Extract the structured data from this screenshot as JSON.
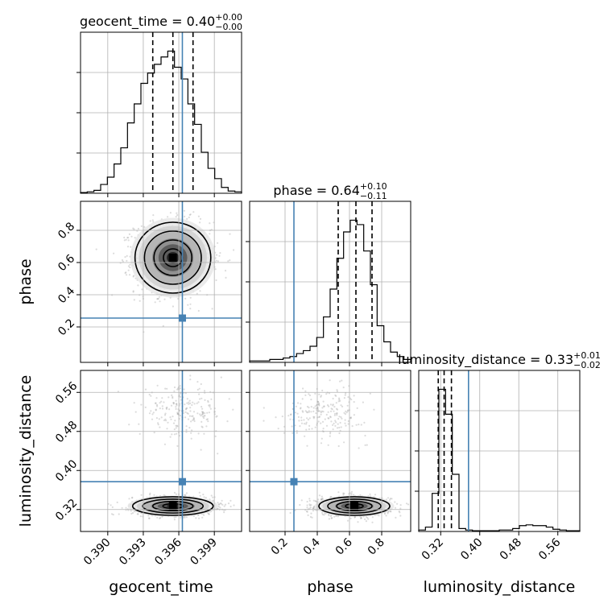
{
  "chart_data": {
    "type": "corner",
    "parameters": [
      "geocent_time",
      "phase",
      "luminosity_distance"
    ],
    "truths": {
      "geocent_time": 0.3963,
      "phase": 0.255,
      "luminosity_distance": 0.377
    },
    "titles": [
      {
        "param": "geocent_time",
        "text": "geocent_time = 0.40",
        "sup": "+0.00",
        "sub": "−0.00"
      },
      {
        "param": "phase",
        "text": "phase = 0.64",
        "sup": "+0.10",
        "sub": "−0.11"
      },
      {
        "param": "luminosity_distance",
        "text": "luminosity_distance = 0.33",
        "sup": "+0.01",
        "sub": "−0.02"
      }
    ],
    "axis_labels": {
      "geocent_time": "geocent_time",
      "phase": "phase",
      "luminosity_distance": "luminosity_distance"
    },
    "ranges": {
      "geocent_time": [
        0.3877,
        0.4013
      ],
      "phase": [
        -0.02,
        0.98
      ],
      "luminosity_distance": [
        0.275,
        0.605
      ]
    },
    "ticks": {
      "geocent_time": [
        "0.390",
        "0.393",
        "0.396",
        "0.399"
      ],
      "phase": [
        "0.2",
        "0.4",
        "0.6",
        "0.8"
      ],
      "luminosity_distance": [
        "0.32",
        "0.40",
        "0.48",
        "0.56"
      ]
    },
    "quantiles": {
      "geocent_time": [
        0.3938,
        0.3955,
        0.3972
      ],
      "phase": [
        0.53,
        0.64,
        0.74
      ],
      "luminosity_distance": [
        0.315,
        0.327,
        0.342
      ]
    },
    "histograms": {
      "geocent_time": {
        "range": [
          0.3877,
          0.4013
        ],
        "counts": [
          0.005,
          0.01,
          0.02,
          0.06,
          0.11,
          0.2,
          0.31,
          0.48,
          0.61,
          0.75,
          0.82,
          0.88,
          0.93,
          0.97,
          0.86,
          0.78,
          0.61,
          0.47,
          0.28,
          0.17,
          0.1,
          0.04,
          0.015,
          0.01
        ]
      },
      "phase": {
        "range": [
          -0.02,
          0.98
        ],
        "counts": [
          0.01,
          0.01,
          0.01,
          0.02,
          0.02,
          0.03,
          0.04,
          0.06,
          0.08,
          0.11,
          0.17,
          0.31,
          0.5,
          0.71,
          0.89,
          0.97,
          0.94,
          0.76,
          0.53,
          0.25,
          0.14,
          0.07,
          0.04,
          0.02
        ]
      },
      "luminosity_distance": {
        "range": [
          0.275,
          0.605
        ],
        "counts": [
          0.01,
          0.03,
          0.26,
          0.97,
          0.8,
          0.39,
          0.02,
          0.01,
          0.005,
          0.005,
          0.005,
          0.005,
          0.01,
          0.01,
          0.02,
          0.04,
          0.045,
          0.04,
          0.04,
          0.03,
          0.015,
          0.01,
          0.005,
          0.005
        ]
      }
    },
    "correlations": [
      {
        "x": "geocent_time",
        "y": "phase",
        "modes": [
          {
            "cx": 0.3955,
            "cy": 0.63,
            "sx": 0.0016,
            "sy": 0.11,
            "w": 1.0
          }
        ]
      },
      {
        "x": "geocent_time",
        "y": "luminosity_distance",
        "modes": [
          {
            "cx": 0.3955,
            "cy": 0.327,
            "sx": 0.0017,
            "sy": 0.0095,
            "w": 0.85
          },
          {
            "cx": 0.3963,
            "cy": 0.52,
            "sx": 0.0018,
            "sy": 0.025,
            "w": 0.15
          }
        ]
      },
      {
        "x": "phase",
        "y": "luminosity_distance",
        "modes": [
          {
            "cx": 0.63,
            "cy": 0.327,
            "sx": 0.11,
            "sy": 0.0095,
            "w": 0.85
          },
          {
            "cx": 0.45,
            "cy": 0.52,
            "sx": 0.13,
            "sy": 0.025,
            "w": 0.15
          }
        ]
      }
    ],
    "grid": true,
    "colors": {
      "truth": "#4682b4",
      "hist": "#000000",
      "grid": "#b0b0b0",
      "scatter": "#9a9a9a"
    }
  }
}
